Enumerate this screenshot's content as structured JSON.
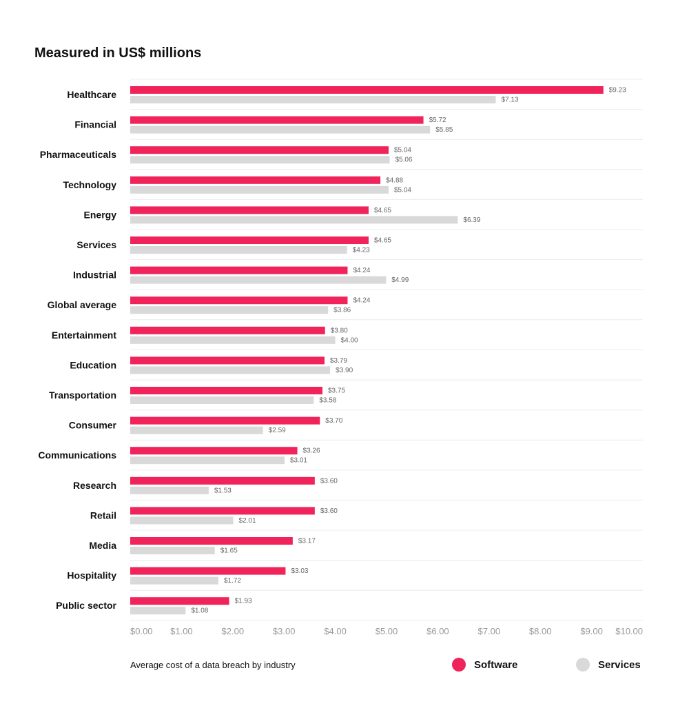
{
  "chart_data": {
    "type": "bar",
    "orientation": "horizontal",
    "title": "Measured in US$ millions",
    "caption": "Average cost of a data breach by industry",
    "categories": [
      "Healthcare",
      "Financial",
      "Pharmaceuticals",
      "Technology",
      "Energy",
      "Services",
      "Industrial",
      "Global average",
      "Entertainment",
      "Education",
      "Transportation",
      "Consumer",
      "Communications",
      "Research",
      "Retail",
      "Media",
      "Hospitality",
      "Public sector"
    ],
    "series": [
      {
        "name": "Software",
        "color": "#f0245a",
        "values": [
          9.23,
          5.72,
          5.04,
          4.88,
          4.65,
          4.65,
          4.24,
          4.24,
          3.8,
          3.79,
          3.75,
          3.7,
          3.26,
          3.6,
          3.6,
          3.17,
          3.03,
          1.93
        ],
        "labels": [
          "$9.23",
          "$5.72",
          "$5.04",
          "$4.88",
          "$4.65",
          "$4.65",
          "$4.24",
          "$4.24",
          "$3.80",
          "$3.79",
          "$3.75",
          "$3.70",
          "$3.26",
          "$3.60",
          "$3.60",
          "$3.17",
          "$3.03",
          "$1.93"
        ]
      },
      {
        "name": "Services",
        "color": "#d9d9d9",
        "values": [
          7.13,
          5.85,
          5.06,
          5.04,
          6.39,
          4.23,
          4.99,
          3.86,
          4.0,
          3.9,
          3.58,
          2.59,
          3.01,
          1.53,
          2.01,
          1.65,
          1.72,
          1.08
        ],
        "labels": [
          "$7.13",
          "$5.85",
          "$5.06",
          "$5.04",
          "$6.39",
          "$4.23",
          "$4.99",
          "$3.86",
          "$4.00",
          "$3.90",
          "$3.58",
          "$2.59",
          "$3.01",
          "$1.53",
          "$2.01",
          "$1.65",
          "$1.72",
          "$1.08"
        ]
      }
    ],
    "xlim": [
      0,
      10
    ],
    "xticks": [
      "$0.00",
      "$1.00",
      "$2.00",
      "$3.00",
      "$4.00",
      "$5.00",
      "$6.00",
      "$7.00",
      "$8.00",
      "$9.00",
      "$10.00"
    ],
    "legend_position": "bottom-right"
  }
}
